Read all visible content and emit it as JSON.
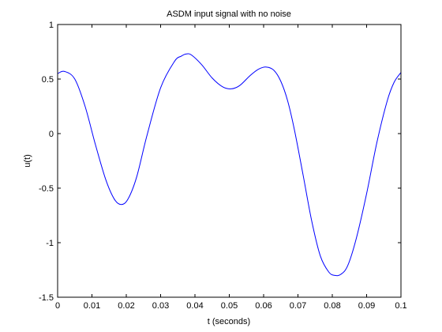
{
  "chart_data": {
    "type": "line",
    "title": "ASDM input signal with no noise",
    "xlabel": "t (seconds)",
    "ylabel": "u(t)",
    "xlim": [
      0,
      0.1
    ],
    "ylim": [
      -1.5,
      1
    ],
    "grid": false,
    "x_ticks": [
      "0",
      "0.01",
      "0.02",
      "0.03",
      "0.04",
      "0.05",
      "0.06",
      "0.07",
      "0.08",
      "0.09",
      "0.1"
    ],
    "y_ticks": [
      "-1.5",
      "-1",
      "-0.5",
      "0",
      "0.5",
      "1"
    ],
    "series": [
      {
        "color": "#0000ff",
        "x": [
          0,
          0.002,
          0.005,
          0.008,
          0.011,
          0.014,
          0.0165,
          0.0185,
          0.0205,
          0.023,
          0.026,
          0.03,
          0.034,
          0.036,
          0.0375,
          0.039,
          0.042,
          0.045,
          0.048,
          0.0505,
          0.053,
          0.056,
          0.0585,
          0.0608,
          0.063,
          0.065,
          0.067,
          0.069,
          0.0715,
          0.074,
          0.0765,
          0.079,
          0.0808,
          0.0825,
          0.0845,
          0.087,
          0.09,
          0.093,
          0.096,
          0.098,
          0.1
        ],
        "y": [
          0.55,
          0.57,
          0.5,
          0.25,
          -0.1,
          -0.42,
          -0.6,
          -0.65,
          -0.6,
          -0.4,
          -0.02,
          0.42,
          0.66,
          0.71,
          0.73,
          0.72,
          0.63,
          0.51,
          0.43,
          0.41,
          0.44,
          0.53,
          0.59,
          0.61,
          0.58,
          0.48,
          0.3,
          0.03,
          -0.38,
          -0.8,
          -1.12,
          -1.27,
          -1.3,
          -1.29,
          -1.21,
          -0.96,
          -0.55,
          -0.08,
          0.3,
          0.47,
          0.56
        ]
      }
    ]
  }
}
